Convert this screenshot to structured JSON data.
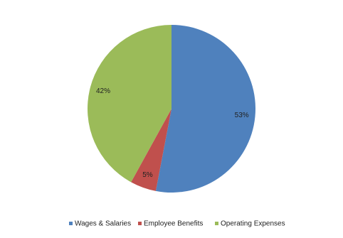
{
  "chart_data": {
    "type": "pie",
    "categories": [
      "Wages & Salaries",
      "Employee Benefits",
      "Operating Expenses"
    ],
    "values": [
      53,
      5,
      42
    ],
    "value_labels": [
      "53%",
      "5%",
      "42%"
    ],
    "colors": [
      "#4f81bd",
      "#c0504d",
      "#9bbb59"
    ],
    "legend": "bottom"
  }
}
